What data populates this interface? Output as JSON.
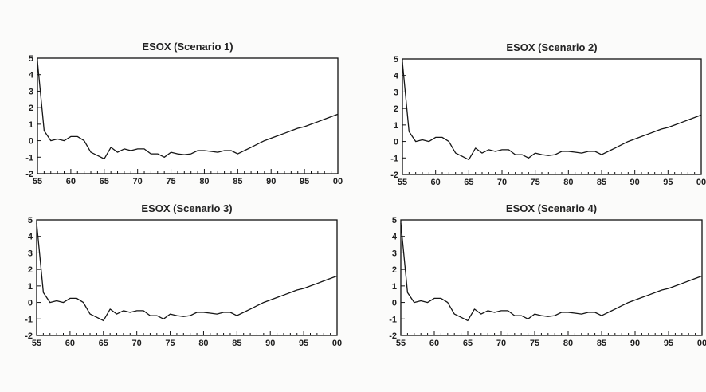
{
  "chart_data": [
    {
      "type": "line",
      "title": "ESOX (Scenario 1)",
      "xlabel": "",
      "ylabel": "",
      "xlim": [
        1955,
        2000
      ],
      "ylim": [
        -2,
        5
      ],
      "x_tick_labels": [
        "55",
        "60",
        "65",
        "70",
        "75",
        "80",
        "85",
        "90",
        "95",
        "00"
      ],
      "y_tick_labels": [
        "-2",
        "-1",
        "0",
        "1",
        "2",
        "3",
        "4",
        "5"
      ],
      "series": [
        {
          "x": [
            1955,
            1956,
            1957,
            1958,
            1959,
            1960,
            1961,
            1962,
            1963,
            1964,
            1965,
            1966,
            1967,
            1968,
            1969,
            1970,
            1971,
            1972,
            1973,
            1974,
            1975,
            1976,
            1977,
            1978,
            1979,
            1980,
            1981,
            1982,
            1983,
            1984,
            1985,
            1986,
            1987,
            1988,
            1989,
            1990,
            1991,
            1992,
            1993,
            1994,
            1995,
            1996,
            1997,
            1998,
            1999,
            2000
          ],
          "values": [
            4.8,
            0.6,
            0.0,
            0.1,
            0.0,
            0.25,
            0.25,
            0.0,
            -0.7,
            -0.9,
            -1.1,
            -0.4,
            -0.7,
            -0.5,
            -0.6,
            -0.5,
            -0.5,
            -0.8,
            -0.8,
            -1.0,
            -0.7,
            -0.8,
            -0.85,
            -0.8,
            -0.6,
            -0.6,
            -0.65,
            -0.7,
            -0.6,
            -0.6,
            -0.8,
            -0.6,
            -0.4,
            -0.2,
            0.0,
            0.15,
            0.3,
            0.45,
            0.6,
            0.75,
            0.85,
            1.0,
            1.15,
            1.3,
            1.45,
            1.6
          ]
        }
      ]
    },
    {
      "type": "line",
      "title": "ESOX (Scenario 2)",
      "xlabel": "",
      "ylabel": "",
      "xlim": [
        1955,
        2000
      ],
      "ylim": [
        -2,
        5
      ],
      "x_tick_labels": [
        "55",
        "60",
        "65",
        "70",
        "75",
        "80",
        "85",
        "90",
        "95",
        "00"
      ],
      "y_tick_labels": [
        "-2",
        "-1",
        "0",
        "1",
        "2",
        "3",
        "4",
        "5"
      ],
      "series": [
        {
          "x": [
            1955,
            1956,
            1957,
            1958,
            1959,
            1960,
            1961,
            1962,
            1963,
            1964,
            1965,
            1966,
            1967,
            1968,
            1969,
            1970,
            1971,
            1972,
            1973,
            1974,
            1975,
            1976,
            1977,
            1978,
            1979,
            1980,
            1981,
            1982,
            1983,
            1984,
            1985,
            1986,
            1987,
            1988,
            1989,
            1990,
            1991,
            1992,
            1993,
            1994,
            1995,
            1996,
            1997,
            1998,
            1999,
            2000
          ],
          "values": [
            4.8,
            0.6,
            0.0,
            0.1,
            0.0,
            0.25,
            0.25,
            0.0,
            -0.7,
            -0.9,
            -1.1,
            -0.4,
            -0.7,
            -0.5,
            -0.6,
            -0.5,
            -0.5,
            -0.8,
            -0.8,
            -1.0,
            -0.7,
            -0.8,
            -0.85,
            -0.8,
            -0.6,
            -0.6,
            -0.65,
            -0.7,
            -0.6,
            -0.6,
            -0.8,
            -0.6,
            -0.4,
            -0.2,
            0.0,
            0.15,
            0.3,
            0.45,
            0.6,
            0.75,
            0.85,
            1.0,
            1.15,
            1.3,
            1.45,
            1.6
          ]
        }
      ]
    },
    {
      "type": "line",
      "title": "ESOX (Scenario 3)",
      "xlabel": "",
      "ylabel": "",
      "xlim": [
        1955,
        2000
      ],
      "ylim": [
        -2,
        5
      ],
      "x_tick_labels": [
        "55",
        "60",
        "65",
        "70",
        "75",
        "80",
        "85",
        "90",
        "95",
        "00"
      ],
      "y_tick_labels": [
        "-2",
        "-1",
        "0",
        "1",
        "2",
        "3",
        "4",
        "5"
      ],
      "series": [
        {
          "x": [
            1955,
            1956,
            1957,
            1958,
            1959,
            1960,
            1961,
            1962,
            1963,
            1964,
            1965,
            1966,
            1967,
            1968,
            1969,
            1970,
            1971,
            1972,
            1973,
            1974,
            1975,
            1976,
            1977,
            1978,
            1979,
            1980,
            1981,
            1982,
            1983,
            1984,
            1985,
            1986,
            1987,
            1988,
            1989,
            1990,
            1991,
            1992,
            1993,
            1994,
            1995,
            1996,
            1997,
            1998,
            1999,
            2000
          ],
          "values": [
            4.8,
            0.6,
            0.0,
            0.1,
            0.0,
            0.25,
            0.25,
            0.0,
            -0.7,
            -0.9,
            -1.1,
            -0.4,
            -0.7,
            -0.5,
            -0.6,
            -0.5,
            -0.5,
            -0.8,
            -0.8,
            -1.0,
            -0.7,
            -0.8,
            -0.85,
            -0.8,
            -0.6,
            -0.6,
            -0.65,
            -0.7,
            -0.6,
            -0.6,
            -0.8,
            -0.6,
            -0.4,
            -0.2,
            0.0,
            0.15,
            0.3,
            0.45,
            0.6,
            0.75,
            0.85,
            1.0,
            1.15,
            1.3,
            1.45,
            1.6
          ]
        }
      ]
    },
    {
      "type": "line",
      "title": "ESOX (Scenario 4)",
      "xlabel": "",
      "ylabel": "",
      "xlim": [
        1955,
        2000
      ],
      "ylim": [
        -2,
        5
      ],
      "x_tick_labels": [
        "55",
        "60",
        "65",
        "70",
        "75",
        "80",
        "85",
        "90",
        "95",
        "00"
      ],
      "y_tick_labels": [
        "-2",
        "-1",
        "0",
        "1",
        "2",
        "3",
        "4",
        "5"
      ],
      "series": [
        {
          "x": [
            1955,
            1956,
            1957,
            1958,
            1959,
            1960,
            1961,
            1962,
            1963,
            1964,
            1965,
            1966,
            1967,
            1968,
            1969,
            1970,
            1971,
            1972,
            1973,
            1974,
            1975,
            1976,
            1977,
            1978,
            1979,
            1980,
            1981,
            1982,
            1983,
            1984,
            1985,
            1986,
            1987,
            1988,
            1989,
            1990,
            1991,
            1992,
            1993,
            1994,
            1995,
            1996,
            1997,
            1998,
            1999,
            2000
          ],
          "values": [
            4.8,
            0.6,
            0.0,
            0.1,
            0.0,
            0.25,
            0.25,
            0.0,
            -0.7,
            -0.9,
            -1.1,
            -0.4,
            -0.7,
            -0.5,
            -0.6,
            -0.5,
            -0.5,
            -0.8,
            -0.8,
            -1.0,
            -0.7,
            -0.8,
            -0.85,
            -0.8,
            -0.6,
            -0.6,
            -0.65,
            -0.7,
            -0.6,
            -0.6,
            -0.8,
            -0.6,
            -0.4,
            -0.2,
            0.0,
            0.15,
            0.3,
            0.45,
            0.6,
            0.75,
            0.85,
            1.0,
            1.15,
            1.3,
            1.45,
            1.6
          ]
        }
      ]
    }
  ]
}
